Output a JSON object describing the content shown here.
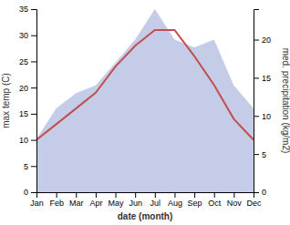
{
  "chart_data": {
    "type": "line",
    "categories": [
      "Jan",
      "Feb",
      "Mar",
      "Apr",
      "May",
      "Jun",
      "Jul",
      "Aug",
      "Sep",
      "Oct",
      "Nov",
      "Dec"
    ],
    "series": [
      {
        "type": "area",
        "axis": "y2",
        "color": "#c5cce8",
        "values": [
          7,
          11,
          13,
          14,
          17,
          20,
          24,
          20,
          19,
          20,
          14,
          11
        ]
      },
      {
        "type": "line",
        "color": "#c0504d",
        "values": [
          10,
          13,
          16,
          19,
          24,
          28,
          31,
          31,
          26,
          20.5,
          14,
          10
        ]
      }
    ],
    "xlabel": "date (month)",
    "ylabel": "max temp (C)",
    "y2label": "med. precipitation (kg/m2)",
    "ylim": [
      0,
      35
    ],
    "yticks": [
      0,
      5,
      10,
      15,
      20,
      25,
      30,
      35
    ],
    "y2lim": [
      0,
      24
    ],
    "y2ticks": [
      0,
      5,
      10,
      15,
      20
    ],
    "grid": false
  }
}
